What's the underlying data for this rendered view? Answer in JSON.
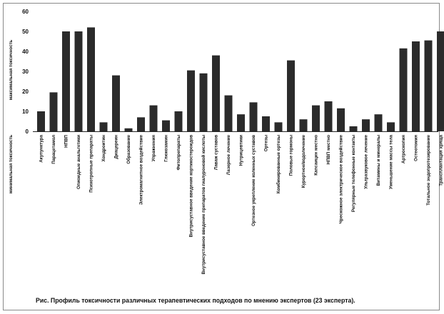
{
  "chart_data": {
    "type": "bar",
    "caption": "Рис. Профиль токсичности различных терапевтических подходов по мнению экспертов (23 эксперта).",
    "ylabel_top": "максимальная токсичность",
    "ylabel_bottom": "минимальная токсичность",
    "ylim": [
      0,
      60
    ],
    "yticks": [
      0,
      10,
      20,
      30,
      40,
      50,
      60
    ],
    "grid": false,
    "bar_color": "#2b2b2b",
    "categories": [
      "Акупунктура",
      "Парацетамол",
      "НПВП",
      "Опиоидные анальгетики",
      "Психотропные препараты",
      "Хондроитин",
      "Диацереин",
      "Образование",
      "Электромагнитное воздействие",
      "Упражнения",
      "Глюкозамин",
      "Фитопрепараты",
      "Внутрисуставное введение кортикостероидов",
      "Внутрисуставное введение препаратов гиалуроновой кислоты",
      "Лаваж суставов",
      "Лазерное лечение",
      "Нутрицевтики",
      "Ортезное укрепление коленных суставов",
      "Ортезы",
      "Комбинированные ортезы",
      "Половые гормоны",
      "Курортное/водолечение",
      "Капсаицин местно",
      "НПВП местно",
      "Чрескожное электрическое воздействие",
      "Регулярные телефонные контакты",
      "Ультразвуковое лечение",
      "Витамины и минералы",
      "Уменьшение массы тела",
      "Артроскопия",
      "Остеотомия",
      "Тотальное эндопротезирование",
      "Трансплантация хряща"
    ],
    "values": [
      10,
      19.5,
      50,
      50,
      52,
      4.5,
      28,
      1.5,
      7,
      13,
      5.5,
      10,
      30.5,
      29,
      38,
      18,
      8.5,
      14.5,
      7.5,
      4.5,
      35.5,
      6,
      13,
      15,
      11.5,
      2.5,
      6,
      8.5,
      4.5,
      41.5,
      45,
      45.5,
      50
    ]
  }
}
